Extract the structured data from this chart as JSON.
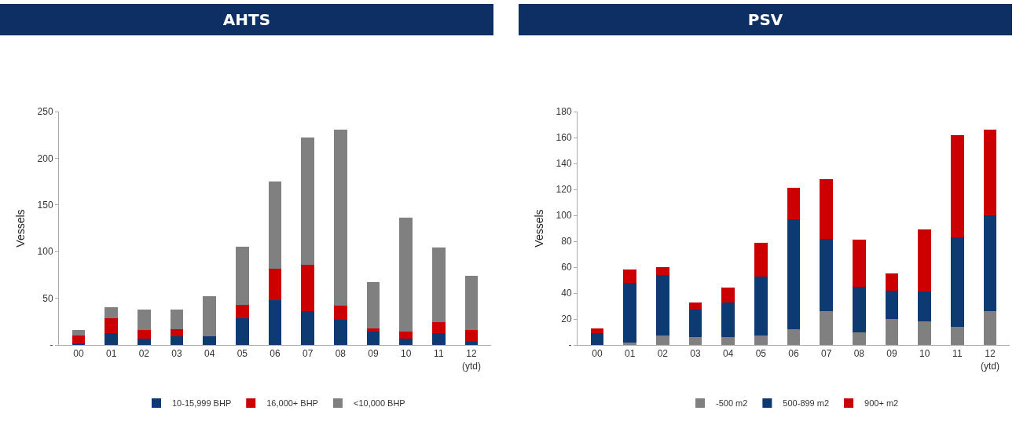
{
  "chart_data": [
    {
      "type": "bar",
      "title": "AHTS",
      "ylabel": "Vessels",
      "stacked": true,
      "grid": false,
      "legend": "bottom",
      "categories": [
        "00",
        "01",
        "02",
        "03",
        "04",
        "05",
        "06",
        "07",
        "08",
        "09",
        "10",
        "11",
        "12\n(ytd)"
      ],
      "series": [
        {
          "name": "10-15,999 BHP",
          "color": "#0d3a73",
          "values": [
            2,
            13,
            7,
            9,
            9,
            29,
            48,
            36,
            27,
            14,
            7,
            13,
            3
          ]
        },
        {
          "name": "16,000+ BHP",
          "color": "#cc0000",
          "values": [
            8,
            16,
            9,
            8,
            0,
            14,
            34,
            50,
            15,
            4,
            7,
            11,
            13
          ]
        },
        {
          "name": "<10,000 BHP",
          "color": "#808080",
          "values": [
            6,
            11,
            22,
            21,
            43,
            62,
            93,
            136,
            189,
            49,
            122,
            80,
            58
          ]
        }
      ],
      "ylim": [
        0,
        250
      ],
      "yticks": [
        {
          "value": 0,
          "label": "-"
        },
        50,
        100,
        150,
        200,
        250
      ]
    },
    {
      "type": "bar",
      "title": "PSV",
      "ylabel": "Vessels",
      "stacked": true,
      "grid": false,
      "legend": "bottom",
      "categories": [
        "00",
        "01",
        "02",
        "03",
        "04",
        "05",
        "06",
        "07",
        "08",
        "09",
        "10",
        "11",
        "12\n(ytd)"
      ],
      "series": [
        {
          "name": "-500 m2",
          "color": "#808080",
          "values": [
            0,
            2,
            7,
            6,
            6,
            7,
            12,
            26,
            10,
            20,
            18,
            14,
            26
          ]
        },
        {
          "name": "500-899 m2",
          "color": "#0d3a73",
          "values": [
            9,
            46,
            47,
            21,
            27,
            46,
            85,
            56,
            35,
            22,
            23,
            69,
            74
          ]
        },
        {
          "name": "900+ m2",
          "color": "#cc0000",
          "values": [
            4,
            10,
            6,
            6,
            11,
            26,
            24,
            46,
            36,
            13,
            48,
            79,
            66
          ]
        }
      ],
      "ylim": [
        0,
        180
      ],
      "yticks": [
        {
          "value": 0,
          "label": "-"
        },
        20,
        40,
        60,
        80,
        100,
        120,
        140,
        160,
        180
      ]
    }
  ]
}
